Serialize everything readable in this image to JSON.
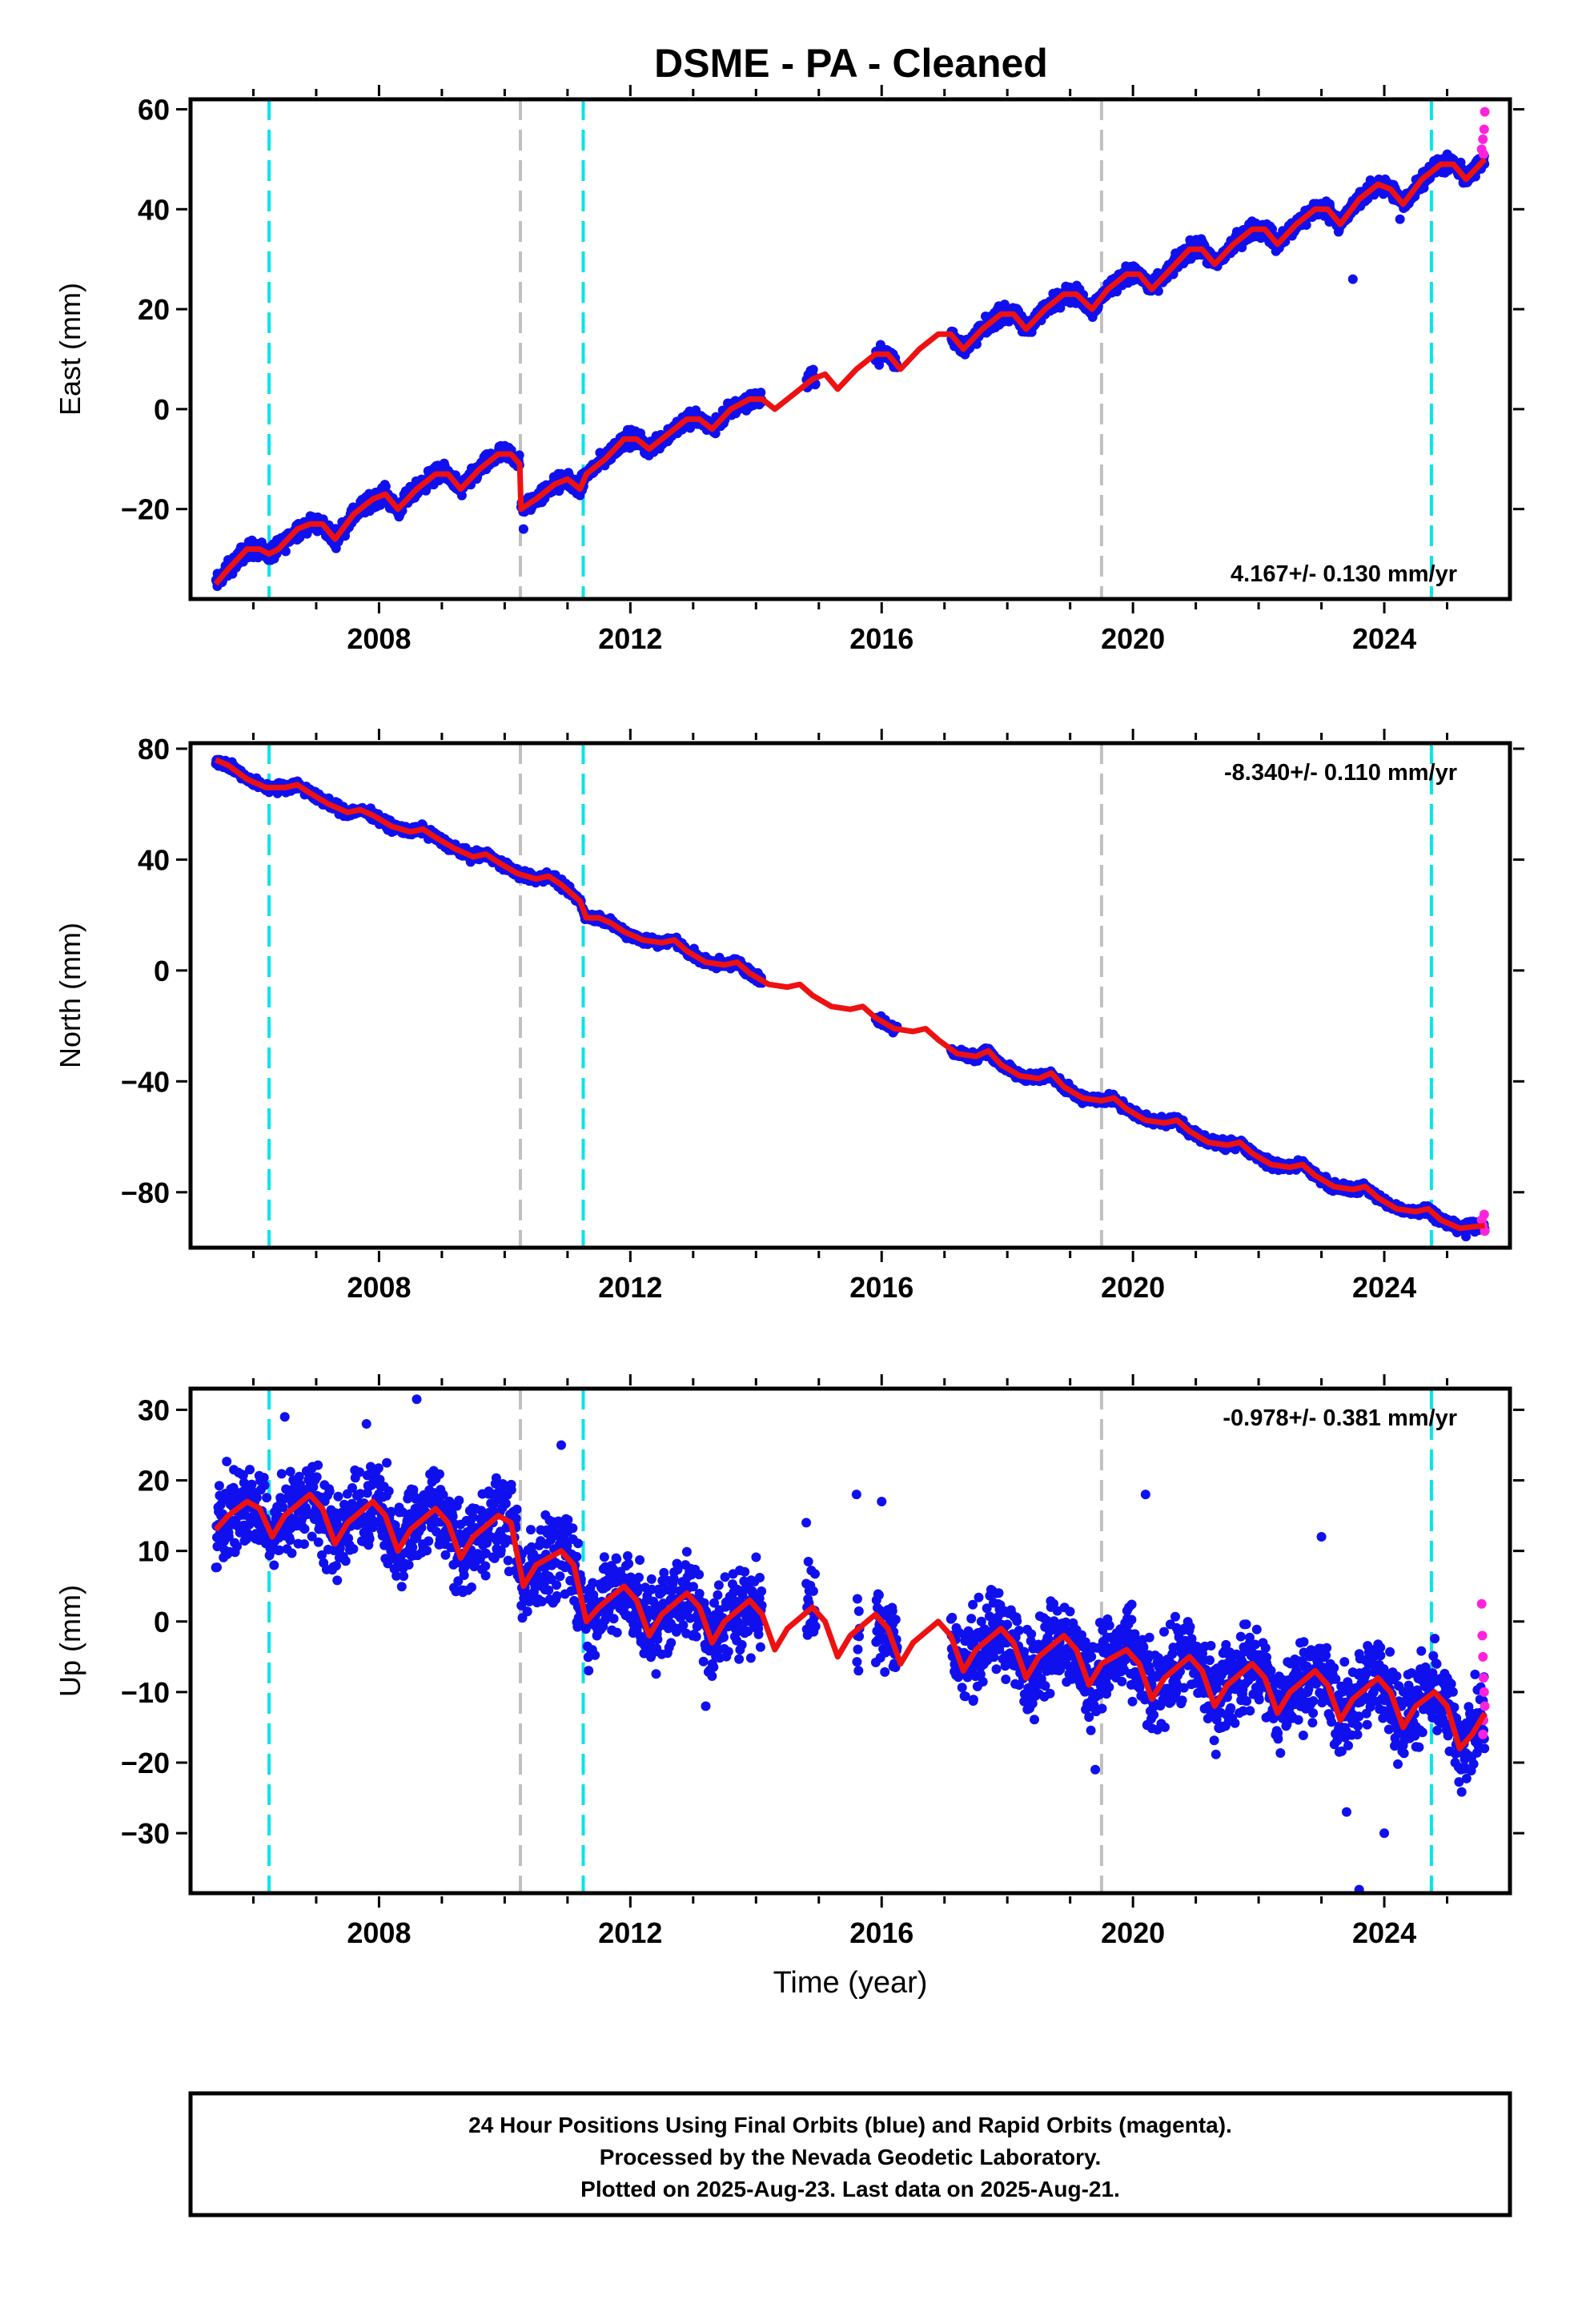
{
  "title": "DSME  - PA - Cleaned",
  "colors": {
    "final_orbits": "#1010ee",
    "rapid_orbits": "#ff22dd",
    "model": "#ee1111",
    "equipment_change": "#00e5ee",
    "earthquake": "#c0c0c0"
  },
  "x_axis": {
    "label": "Time (year)",
    "range": [
      2005.0,
      2026.0
    ],
    "ticks": [
      "2008",
      "2012",
      "2016",
      "2020",
      "2024"
    ]
  },
  "event_lines": {
    "equipment_change": [
      2006.25,
      2011.25,
      2024.75
    ],
    "earthquake": [
      2010.25,
      2019.5
    ]
  },
  "footer": {
    "line1": "24 Hour Positions Using Final Orbits (blue) and Rapid Orbits (magenta).",
    "line2": "Processed by the Nevada Geodetic Laboratory.",
    "line3": "Plotted on 2025-Aug-23. Last data on 2025-Aug-21."
  },
  "chart_data": [
    {
      "type": "scatter",
      "component": "east",
      "ylabel": "East (mm)",
      "ylim": [
        -38,
        62
      ],
      "yticks": [
        "-20",
        "0",
        "20",
        "40",
        "60"
      ],
      "rate_label": "4.167+/- 0.130 mm/yr",
      "rate_position": "bottom-right",
      "model_points": [
        [
          2005.4,
          -35
        ],
        [
          2005.6,
          -32
        ],
        [
          2005.9,
          -28
        ],
        [
          2006.1,
          -28
        ],
        [
          2006.25,
          -29
        ],
        [
          2006.4,
          -28
        ],
        [
          2006.7,
          -24
        ],
        [
          2006.9,
          -23
        ],
        [
          2007.1,
          -23
        ],
        [
          2007.3,
          -26
        ],
        [
          2007.6,
          -21
        ],
        [
          2007.9,
          -18
        ],
        [
          2008.1,
          -17
        ],
        [
          2008.3,
          -20
        ],
        [
          2008.6,
          -16
        ],
        [
          2008.9,
          -13
        ],
        [
          2009.1,
          -13
        ],
        [
          2009.3,
          -16
        ],
        [
          2009.6,
          -12
        ],
        [
          2009.9,
          -9
        ],
        [
          2010.1,
          -9
        ],
        [
          2010.24,
          -11
        ],
        [
          2010.26,
          -20
        ],
        [
          2010.5,
          -18
        ],
        [
          2010.8,
          -15
        ],
        [
          2011.0,
          -14
        ],
        [
          2011.2,
          -16
        ],
        [
          2011.3,
          -13
        ],
        [
          2011.6,
          -10
        ],
        [
          2011.9,
          -6
        ],
        [
          2012.1,
          -6
        ],
        [
          2012.3,
          -8
        ],
        [
          2012.6,
          -5
        ],
        [
          2012.9,
          -2
        ],
        [
          2013.1,
          -2
        ],
        [
          2013.3,
          -4
        ],
        [
          2013.6,
          0
        ],
        [
          2013.9,
          2
        ],
        [
          2014.1,
          2
        ],
        [
          2014.3,
          0
        ],
        [
          2014.6,
          3
        ],
        [
          2014.9,
          6
        ],
        [
          2015.1,
          7
        ],
        [
          2015.3,
          4
        ],
        [
          2015.6,
          8
        ],
        [
          2015.9,
          11
        ],
        [
          2016.1,
          11
        ],
        [
          2016.3,
          8
        ],
        [
          2016.6,
          12
        ],
        [
          2016.9,
          15
        ],
        [
          2017.1,
          15
        ],
        [
          2017.3,
          12
        ],
        [
          2017.6,
          16
        ],
        [
          2017.9,
          19
        ],
        [
          2018.1,
          19
        ],
        [
          2018.3,
          16
        ],
        [
          2018.6,
          20
        ],
        [
          2018.9,
          23
        ],
        [
          2019.1,
          23
        ],
        [
          2019.35,
          20
        ],
        [
          2019.6,
          24
        ],
        [
          2019.9,
          27
        ],
        [
          2020.1,
          27
        ],
        [
          2020.3,
          24
        ],
        [
          2020.6,
          28
        ],
        [
          2020.9,
          32
        ],
        [
          2021.1,
          32
        ],
        [
          2021.3,
          29
        ],
        [
          2021.6,
          33
        ],
        [
          2021.9,
          36
        ],
        [
          2022.1,
          36
        ],
        [
          2022.3,
          33
        ],
        [
          2022.6,
          37
        ],
        [
          2022.9,
          40
        ],
        [
          2023.1,
          40
        ],
        [
          2023.3,
          37
        ],
        [
          2023.6,
          42
        ],
        [
          2023.9,
          45
        ],
        [
          2024.1,
          44
        ],
        [
          2024.3,
          41
        ],
        [
          2024.6,
          46
        ],
        [
          2024.9,
          49
        ],
        [
          2025.1,
          49
        ],
        [
          2025.3,
          46
        ],
        [
          2025.6,
          50
        ]
      ],
      "data_segments": [
        [
          2005.4,
          2010.24
        ],
        [
          2010.26,
          2014.1
        ],
        [
          2014.8,
          2014.95
        ],
        [
          2015.9,
          2016.25
        ],
        [
          2017.1,
          2025.6
        ]
      ],
      "scatter_half_width_mm": 2.5,
      "outliers": [
        [
          2023.5,
          26
        ],
        [
          2024.25,
          38
        ],
        [
          2010.3,
          -24
        ]
      ],
      "rapid_points": [
        [
          2025.55,
          52
        ],
        [
          2025.57,
          54
        ],
        [
          2025.59,
          56
        ],
        [
          2025.6,
          59.5
        ],
        [
          2025.58,
          51
        ]
      ]
    },
    {
      "type": "scatter",
      "component": "north",
      "ylabel": "North (mm)",
      "ylim": [
        -100,
        82
      ],
      "yticks": [
        "-80",
        "-40",
        "0",
        "40",
        "80"
      ],
      "rate_label": "-8.340+/- 0.110 mm/yr",
      "rate_position": "top-right",
      "model_points": [
        [
          2005.4,
          76
        ],
        [
          2005.6,
          74
        ],
        [
          2005.9,
          69
        ],
        [
          2006.2,
          66
        ],
        [
          2006.5,
          66
        ],
        [
          2006.7,
          67
        ],
        [
          2006.9,
          64
        ],
        [
          2007.2,
          60
        ],
        [
          2007.5,
          57
        ],
        [
          2007.7,
          58
        ],
        [
          2007.9,
          56
        ],
        [
          2008.2,
          52
        ],
        [
          2008.5,
          50
        ],
        [
          2008.7,
          51
        ],
        [
          2008.9,
          48
        ],
        [
          2009.2,
          44
        ],
        [
          2009.5,
          41
        ],
        [
          2009.7,
          42
        ],
        [
          2009.9,
          39
        ],
        [
          2010.2,
          35
        ],
        [
          2010.5,
          33
        ],
        [
          2010.7,
          34
        ],
        [
          2010.9,
          31
        ],
        [
          2011.2,
          25
        ],
        [
          2011.3,
          19
        ],
        [
          2011.5,
          19
        ],
        [
          2011.7,
          17
        ],
        [
          2011.9,
          14
        ],
        [
          2012.2,
          11
        ],
        [
          2012.5,
          10
        ],
        [
          2012.7,
          11
        ],
        [
          2012.9,
          7
        ],
        [
          2013.2,
          3
        ],
        [
          2013.5,
          2
        ],
        [
          2013.7,
          3
        ],
        [
          2013.9,
          -1
        ],
        [
          2014.2,
          -5
        ],
        [
          2014.5,
          -6
        ],
        [
          2014.7,
          -5
        ],
        [
          2014.9,
          -9
        ],
        [
          2015.2,
          -13
        ],
        [
          2015.5,
          -14
        ],
        [
          2015.7,
          -13
        ],
        [
          2015.9,
          -17
        ],
        [
          2016.2,
          -21
        ],
        [
          2016.5,
          -22
        ],
        [
          2016.7,
          -21
        ],
        [
          2016.9,
          -25
        ],
        [
          2017.2,
          -30
        ],
        [
          2017.5,
          -31
        ],
        [
          2017.7,
          -29
        ],
        [
          2017.9,
          -34
        ],
        [
          2018.2,
          -38
        ],
        [
          2018.5,
          -39
        ],
        [
          2018.7,
          -37
        ],
        [
          2018.9,
          -42
        ],
        [
          2019.2,
          -46
        ],
        [
          2019.5,
          -47
        ],
        [
          2019.7,
          -46
        ],
        [
          2019.9,
          -50
        ],
        [
          2020.2,
          -54
        ],
        [
          2020.5,
          -55
        ],
        [
          2020.7,
          -54
        ],
        [
          2020.9,
          -58
        ],
        [
          2021.2,
          -62
        ],
        [
          2021.5,
          -63
        ],
        [
          2021.7,
          -62
        ],
        [
          2021.9,
          -66
        ],
        [
          2022.2,
          -70
        ],
        [
          2022.5,
          -71
        ],
        [
          2022.7,
          -70
        ],
        [
          2022.9,
          -74
        ],
        [
          2023.2,
          -78
        ],
        [
          2023.5,
          -79
        ],
        [
          2023.7,
          -78
        ],
        [
          2023.9,
          -82
        ],
        [
          2024.2,
          -86
        ],
        [
          2024.5,
          -87
        ],
        [
          2024.7,
          -86
        ],
        [
          2024.9,
          -90
        ],
        [
          2025.2,
          -93
        ],
        [
          2025.6,
          -92
        ]
      ],
      "data_segments": [
        [
          2005.4,
          2014.1
        ],
        [
          2015.9,
          2016.25
        ],
        [
          2017.1,
          2025.6
        ]
      ],
      "scatter_half_width_mm": 2.5,
      "outliers": [
        [
          2025.3,
          -96
        ]
      ],
      "rapid_points": [
        [
          2025.55,
          -90
        ],
        [
          2025.57,
          -92
        ],
        [
          2025.59,
          -88
        ],
        [
          2025.6,
          -94
        ]
      ]
    },
    {
      "type": "scatter",
      "component": "up",
      "ylabel": "Up (mm)",
      "ylim": [
        -38.5,
        33
      ],
      "yticks": [
        "-30",
        "-20",
        "-10",
        "0",
        "10",
        "20",
        "30"
      ],
      "rate_label": "-0.978+/- 0.381 mm/yr",
      "rate_position": "top-right",
      "model_points": [
        [
          2005.4,
          13
        ],
        [
          2005.6,
          15
        ],
        [
          2005.9,
          17
        ],
        [
          2006.1,
          16
        ],
        [
          2006.3,
          12
        ],
        [
          2006.5,
          15
        ],
        [
          2006.9,
          18
        ],
        [
          2007.1,
          16
        ],
        [
          2007.3,
          11
        ],
        [
          2007.5,
          14
        ],
        [
          2007.9,
          17
        ],
        [
          2008.1,
          15
        ],
        [
          2008.3,
          10
        ],
        [
          2008.5,
          13
        ],
        [
          2008.9,
          16
        ],
        [
          2009.1,
          14
        ],
        [
          2009.3,
          9
        ],
        [
          2009.5,
          12
        ],
        [
          2009.9,
          15
        ],
        [
          2010.1,
          14
        ],
        [
          2010.3,
          5
        ],
        [
          2010.5,
          8
        ],
        [
          2010.9,
          10
        ],
        [
          2011.1,
          8
        ],
        [
          2011.3,
          0
        ],
        [
          2011.5,
          2
        ],
        [
          2011.9,
          5
        ],
        [
          2012.1,
          3
        ],
        [
          2012.3,
          -2
        ],
        [
          2012.5,
          1
        ],
        [
          2012.9,
          4
        ],
        [
          2013.1,
          2
        ],
        [
          2013.3,
          -3
        ],
        [
          2013.5,
          0
        ],
        [
          2013.9,
          3
        ],
        [
          2014.1,
          1
        ],
        [
          2014.3,
          -4
        ],
        [
          2014.5,
          -1
        ],
        [
          2014.9,
          2
        ],
        [
          2015.1,
          0
        ],
        [
          2015.3,
          -5
        ],
        [
          2015.5,
          -2
        ],
        [
          2015.9,
          1
        ],
        [
          2016.1,
          -1
        ],
        [
          2016.3,
          -6
        ],
        [
          2016.5,
          -3
        ],
        [
          2016.9,
          0
        ],
        [
          2017.1,
          -2
        ],
        [
          2017.3,
          -7
        ],
        [
          2017.5,
          -4
        ],
        [
          2017.9,
          -1
        ],
        [
          2018.1,
          -3
        ],
        [
          2018.3,
          -8
        ],
        [
          2018.5,
          -5
        ],
        [
          2018.9,
          -2
        ],
        [
          2019.1,
          -4
        ],
        [
          2019.3,
          -9
        ],
        [
          2019.5,
          -6
        ],
        [
          2019.9,
          -4
        ],
        [
          2020.1,
          -6
        ],
        [
          2020.3,
          -11
        ],
        [
          2020.5,
          -8
        ],
        [
          2020.9,
          -5
        ],
        [
          2021.1,
          -7
        ],
        [
          2021.3,
          -12
        ],
        [
          2021.5,
          -9
        ],
        [
          2021.9,
          -6
        ],
        [
          2022.1,
          -8
        ],
        [
          2022.3,
          -13
        ],
        [
          2022.5,
          -10
        ],
        [
          2022.9,
          -7
        ],
        [
          2023.1,
          -9
        ],
        [
          2023.3,
          -14
        ],
        [
          2023.5,
          -11
        ],
        [
          2023.9,
          -8
        ],
        [
          2024.1,
          -10
        ],
        [
          2024.3,
          -15
        ],
        [
          2024.5,
          -12
        ],
        [
          2024.8,
          -10
        ],
        [
          2025.0,
          -12
        ],
        [
          2025.2,
          -18
        ],
        [
          2025.4,
          -16
        ],
        [
          2025.6,
          -13
        ]
      ],
      "data_segments": [
        [
          2005.4,
          2014.1
        ],
        [
          2014.8,
          2014.95
        ],
        [
          2015.6,
          2015.65
        ],
        [
          2015.9,
          2016.25
        ],
        [
          2017.1,
          2025.6
        ]
      ],
      "scatter_half_width_mm": 9,
      "outliers": [
        [
          2008.6,
          31.5
        ],
        [
          2006.5,
          29
        ],
        [
          2007.8,
          28
        ],
        [
          2015.6,
          18
        ],
        [
          2016.0,
          17
        ],
        [
          2014.8,
          14
        ],
        [
          2013.2,
          -12
        ],
        [
          2019.4,
          -21
        ],
        [
          2023.6,
          -38
        ],
        [
          2023.4,
          -27
        ],
        [
          2024.0,
          -30
        ],
        [
          2020.2,
          18
        ],
        [
          2023.0,
          12
        ],
        [
          2010.9,
          25
        ]
      ],
      "rapid_points": [
        [
          2025.55,
          2.5
        ],
        [
          2025.56,
          -2
        ],
        [
          2025.57,
          -5
        ],
        [
          2025.58,
          -8
        ],
        [
          2025.59,
          -10
        ],
        [
          2025.6,
          -12
        ],
        [
          2025.58,
          -14
        ],
        [
          2025.57,
          -16
        ]
      ]
    }
  ]
}
